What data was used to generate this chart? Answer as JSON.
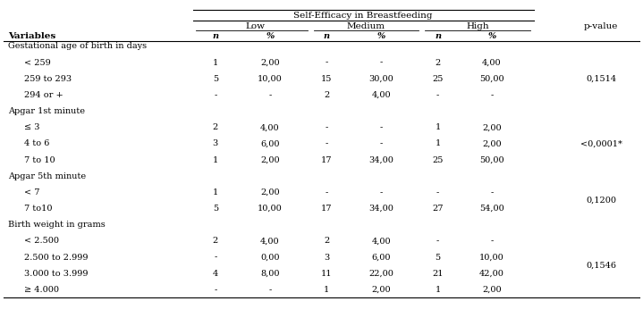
{
  "title": "Self-Efficacy in Breastfeeding",
  "rows": [
    [
      "Gestational age of birth in days",
      "",
      "",
      "",
      "",
      "",
      ""
    ],
    [
      "< 259",
      "1",
      "2,00",
      "-",
      "-",
      "2",
      "4,00"
    ],
    [
      "259 to 293",
      "5",
      "10,00",
      "15",
      "30,00",
      "25",
      "50,00"
    ],
    [
      "294 or +",
      "-",
      "-",
      "2",
      "4,00",
      "-",
      "-"
    ],
    [
      "Apgar 1st minute",
      "",
      "",
      "",
      "",
      "",
      ""
    ],
    [
      "≤ 3",
      "2",
      "4,00",
      "-",
      "-",
      "1",
      "2,00"
    ],
    [
      "4 to 6",
      "3",
      "6,00",
      "-",
      "-",
      "1",
      "2,00"
    ],
    [
      "7 to 10",
      "1",
      "2,00",
      "17",
      "34,00",
      "25",
      "50,00"
    ],
    [
      "Apgar 5th minute",
      "",
      "",
      "",
      "",
      "",
      ""
    ],
    [
      "< 7",
      "1",
      "2,00",
      "-",
      "-",
      "-",
      "-"
    ],
    [
      "7 to10",
      "5",
      "10,00",
      "17",
      "34,00",
      "27",
      "54,00"
    ],
    [
      "Birth weight in grams",
      "",
      "",
      "",
      "",
      "",
      ""
    ],
    [
      "< 2.500",
      "2",
      "4,00",
      "2",
      "4,00",
      "-",
      "-"
    ],
    [
      "2.500 to 2.999",
      "-",
      "0,00",
      "3",
      "6,00",
      "5",
      "10,00"
    ],
    [
      "3.000 to 3.999",
      "4",
      "8,00",
      "11",
      "22,00",
      "21",
      "42,00"
    ],
    [
      "≥ 4.000",
      "-",
      "-",
      "1",
      "2,00",
      "1",
      "2,00"
    ]
  ],
  "category_rows": [
    0,
    4,
    8,
    11
  ],
  "pvalue_spans": [
    [
      1,
      3,
      "0,1514"
    ],
    [
      5,
      7,
      "<0,0001*"
    ],
    [
      9,
      10,
      "0,1200"
    ],
    [
      12,
      15,
      "0,1546"
    ]
  ],
  "background_color": "#ffffff",
  "text_color": "#000000",
  "font_size": 7.0,
  "header_font_size": 7.5
}
